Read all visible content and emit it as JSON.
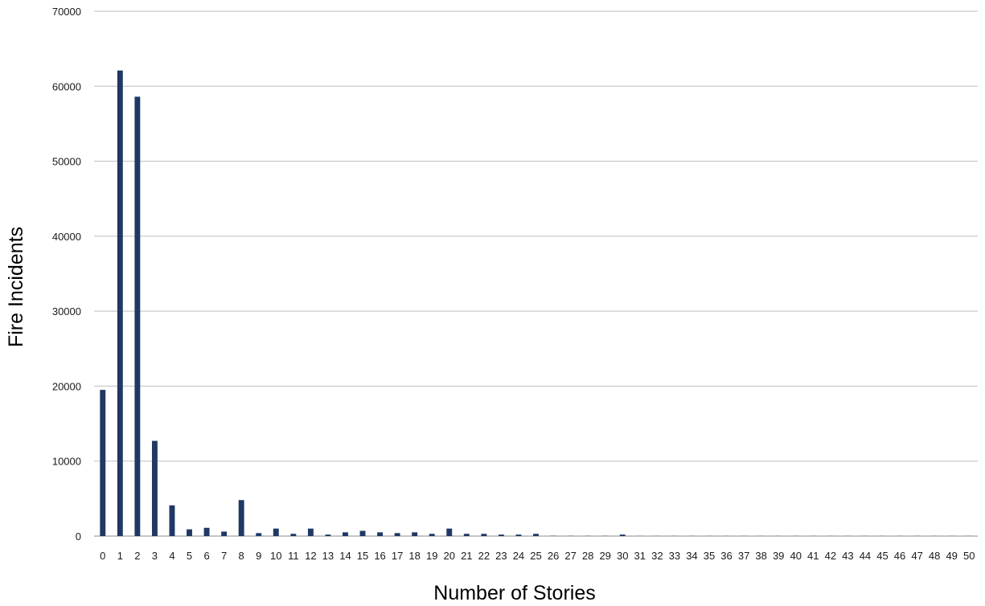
{
  "chart_data": {
    "type": "bar",
    "title": "",
    "xlabel": "Number of Stories",
    "ylabel": "Fire Incidents",
    "ylim": [
      0,
      70000
    ],
    "yticks": [
      0,
      10000,
      20000,
      30000,
      40000,
      50000,
      60000,
      70000
    ],
    "grid": true,
    "bar_color": "#1f3864",
    "categories": [
      "0",
      "1",
      "2",
      "3",
      "4",
      "5",
      "6",
      "7",
      "8",
      "9",
      "10",
      "11",
      "12",
      "13",
      "14",
      "15",
      "16",
      "17",
      "18",
      "19",
      "20",
      "21",
      "22",
      "23",
      "24",
      "25",
      "26",
      "27",
      "28",
      "29",
      "30",
      "31",
      "32",
      "33",
      "34",
      "35",
      "36",
      "37",
      "38",
      "39",
      "40",
      "41",
      "42",
      "43",
      "44",
      "45",
      "46",
      "47",
      "48",
      "49",
      "50"
    ],
    "values": [
      19500,
      62100,
      58600,
      12700,
      4100,
      900,
      1100,
      600,
      4800,
      400,
      1000,
      300,
      1000,
      200,
      500,
      700,
      500,
      400,
      500,
      300,
      1000,
      300,
      300,
      200,
      200,
      300,
      50,
      30,
      30,
      30,
      200,
      20,
      20,
      20,
      20,
      20,
      20,
      20,
      20,
      20,
      20,
      20,
      20,
      20,
      20,
      20,
      20,
      20,
      20,
      20,
      20
    ]
  }
}
